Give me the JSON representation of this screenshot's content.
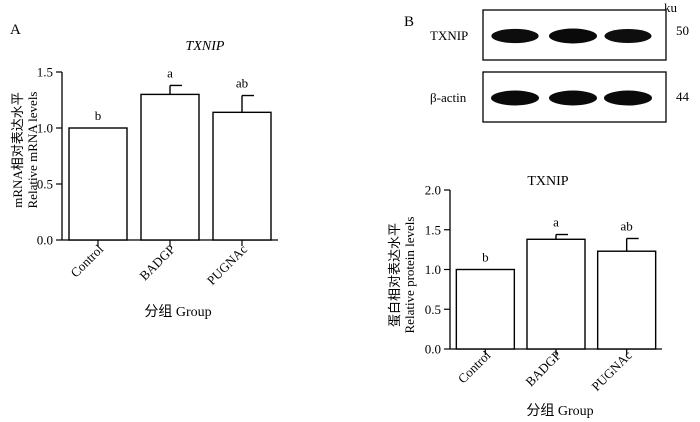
{
  "panel_a": {
    "label": "A"
  },
  "panel_b": {
    "label": "B"
  },
  "blot": {
    "unit": "ku",
    "rows": [
      {
        "name": "TXNIP",
        "size": "50",
        "band_intensity": [
          0.85,
          1.0,
          0.8
        ]
      },
      {
        "name": "β-actin",
        "size": "44",
        "band_intensity": [
          1.0,
          1.0,
          1.0
        ]
      }
    ]
  },
  "chart_data": [
    {
      "type": "bar",
      "title": "TXNIP",
      "title_italic": true,
      "categories": [
        "Control",
        "BADGP",
        "PUGNAc"
      ],
      "values": [
        1.0,
        1.3,
        1.14
      ],
      "errors": [
        0.0,
        0.08,
        0.15
      ],
      "significance": [
        "b",
        "a",
        "ab"
      ],
      "ylabel_cn": "mRNA相对表达水平",
      "ylabel_en": "Relative mRNA levels",
      "xlabel": "分组 Group",
      "ylim": [
        0,
        1.5
      ],
      "yticks": [
        "0.0",
        "0.5",
        "1.0",
        "1.5"
      ],
      "grid": false
    },
    {
      "type": "bar",
      "title": "TXNIP",
      "title_italic": false,
      "categories": [
        "Control",
        "BADGP",
        "PUGNAc"
      ],
      "values": [
        1.0,
        1.38,
        1.23
      ],
      "errors": [
        0.0,
        0.06,
        0.16
      ],
      "significance": [
        "b",
        "a",
        "ab"
      ],
      "ylabel_cn": "蛋白相对表达水平",
      "ylabel_en": "Relative protein levels",
      "xlabel": "分组 Group",
      "ylim": [
        0,
        2.0
      ],
      "yticks": [
        "0.0",
        "0.5",
        "1.0",
        "1.5",
        "2.0"
      ],
      "grid": false
    }
  ]
}
